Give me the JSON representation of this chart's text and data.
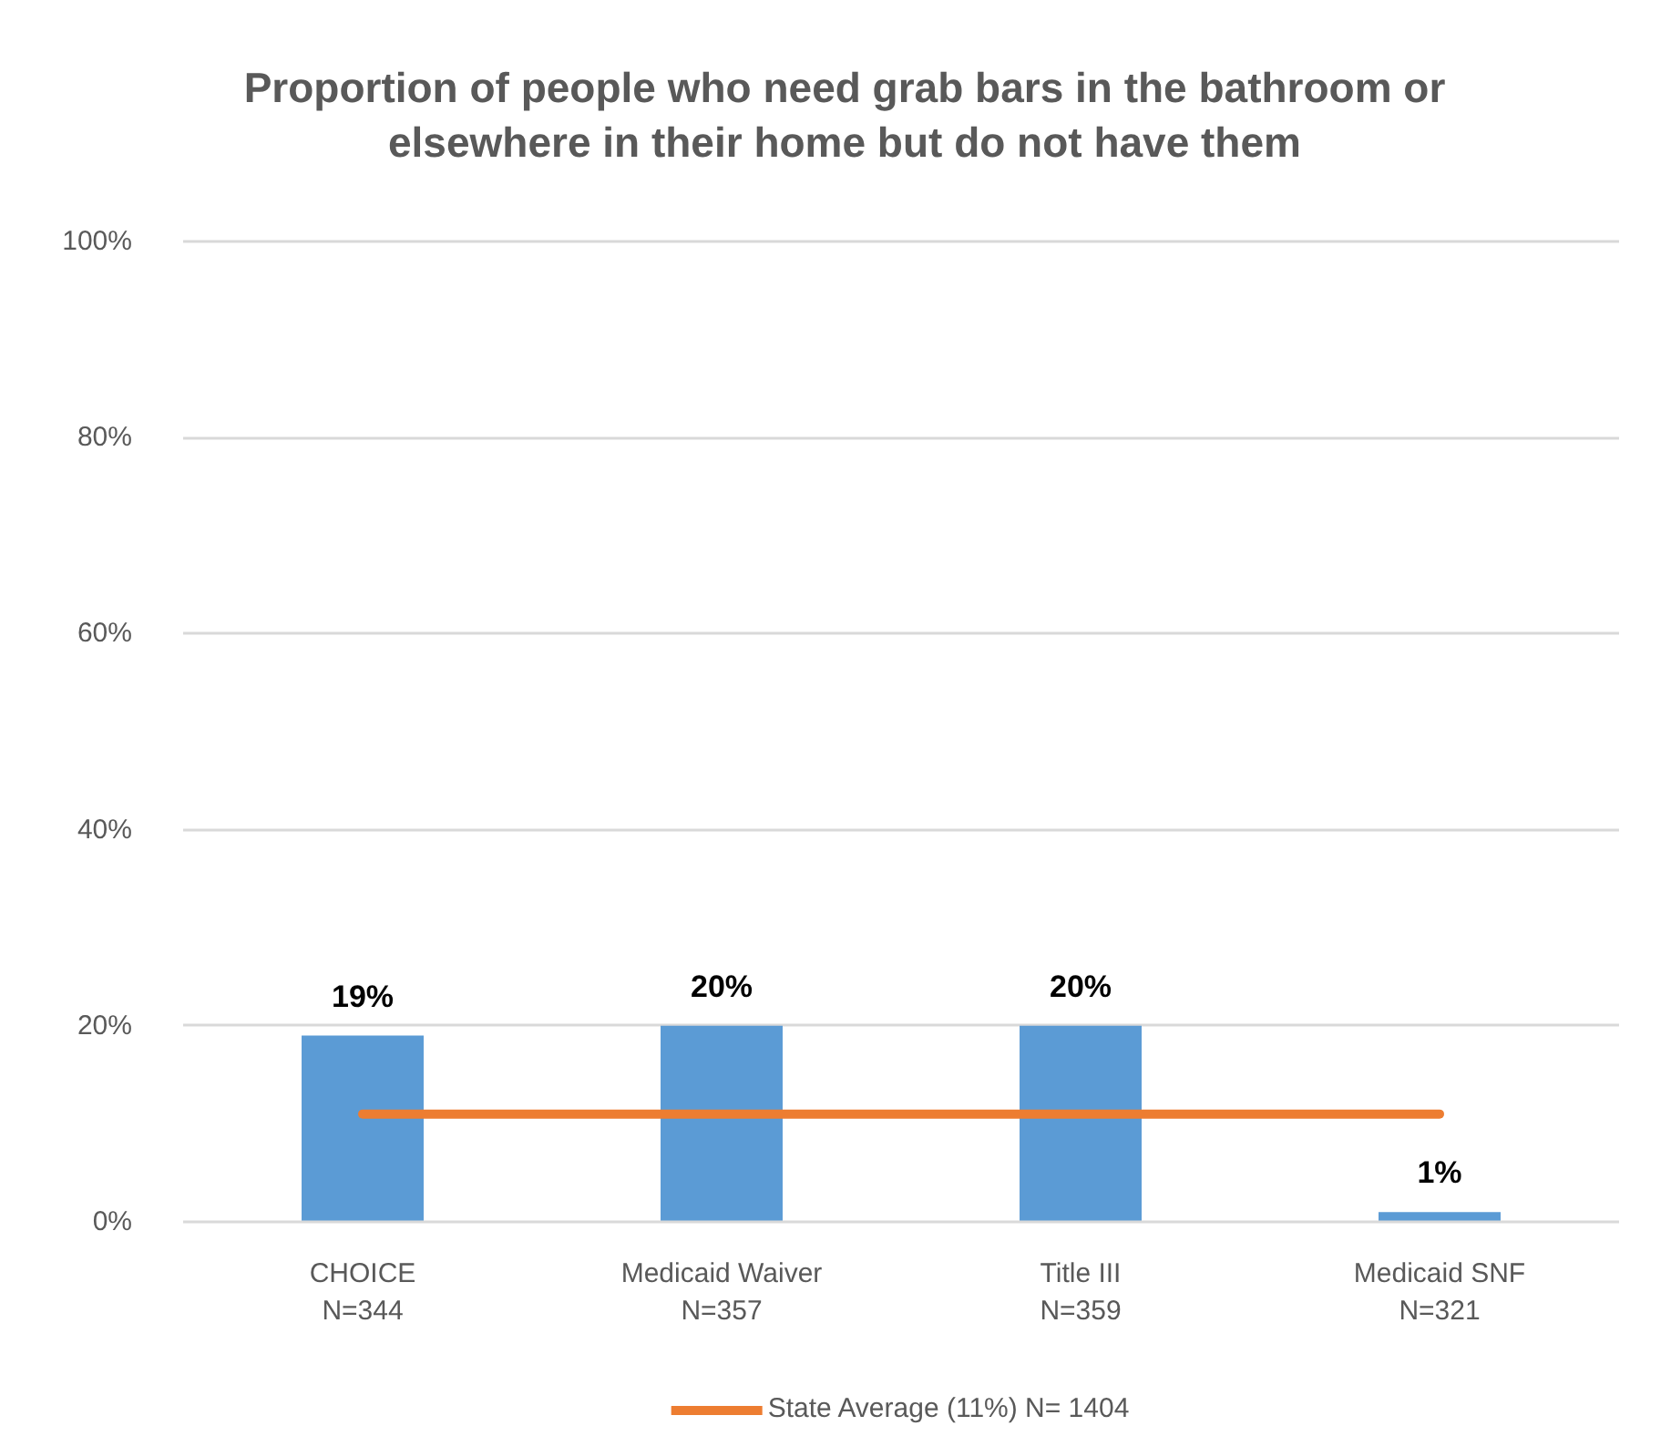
{
  "chart_data": {
    "type": "bar",
    "title": "Proportion of people who need grab bars in the bathroom or elsewhere in their home but do not have them",
    "categories": [
      "CHOICE\nN=344",
      "Medicaid Waiver\nN=357",
      "Title III\nN=359",
      "Medicaid SNF\nN=321"
    ],
    "series": [
      {
        "color": "#5b9bd5",
        "values": [
          19,
          20,
          20,
          1
        ],
        "value_labels": [
          "19%",
          "20%",
          "20%",
          "1%"
        ]
      },
      {
        "type": "line",
        "name": "State Average (11%) N= 1404",
        "color": "#ed7d31",
        "values": [
          11,
          11,
          11,
          11
        ]
      }
    ],
    "ylim": [
      0,
      100
    ],
    "yticks": [
      {
        "value": 0,
        "label": "0%"
      },
      {
        "value": 20,
        "label": "20%"
      },
      {
        "value": 40,
        "label": "40%"
      },
      {
        "value": 60,
        "label": "60%"
      },
      {
        "value": 80,
        "label": "80%"
      },
      {
        "value": 100,
        "label": "100%"
      }
    ],
    "grid": "y",
    "legend": "bottom"
  }
}
